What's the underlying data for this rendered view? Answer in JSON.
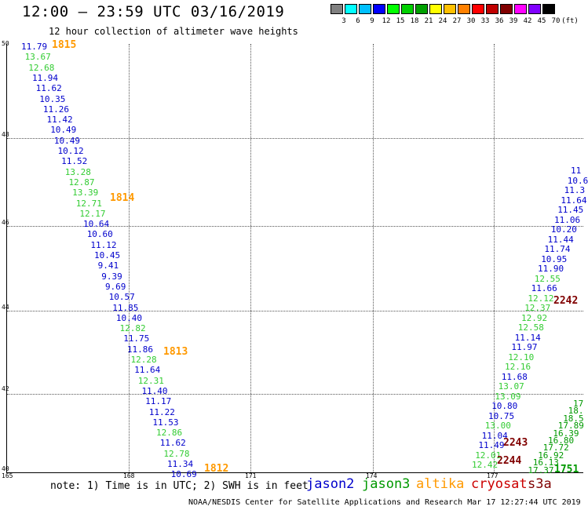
{
  "header": {
    "title": "12:00 — 23:59 UTC 03/16/2019",
    "subtitle": "12 hour collection of altimeter wave heights"
  },
  "colorbar": {
    "colors": [
      "#808080",
      "#00ffff",
      "#00c0ff",
      "#0000ff",
      "#00ff00",
      "#00d000",
      "#00a000",
      "#ffff00",
      "#ffc000",
      "#ff8000",
      "#ff0000",
      "#c00000",
      "#800000",
      "#ff00ff",
      "#8000ff",
      "#000000"
    ],
    "labels": [
      "3",
      "6",
      "9",
      "12",
      "15",
      "18",
      "21",
      "24",
      "27",
      "30",
      "33",
      "36",
      "39",
      "42",
      "45",
      "70",
      "(ft)"
    ]
  },
  "colors": {
    "jason2": "#0000cc",
    "jason3": "#33cc33",
    "jason3_dark": "#009900",
    "altika": "#ff9900",
    "cryosat": "#cc0000",
    "s3a": "#800000"
  },
  "axes": {
    "y_ticks": [
      "50",
      "48",
      "46",
      "44",
      "42",
      "40"
    ],
    "x_ticks": [
      "165",
      "168",
      "171",
      "174",
      "177"
    ]
  },
  "passes": [
    {
      "label": "1815",
      "satellite": "altika"
    },
    {
      "label": "1814",
      "satellite": "altika"
    },
    {
      "label": "1813",
      "satellite": "altika"
    },
    {
      "label": "1812",
      "satellite": "altika"
    },
    {
      "label": "2242",
      "satellite": "s3a"
    },
    {
      "label": "2243",
      "satellite": "s3a"
    },
    {
      "label": "2244",
      "satellite": "s3a"
    },
    {
      "label": "1751",
      "satellite": "jason3"
    }
  ],
  "track_west": [
    {
      "v": "11.79",
      "c": "jason2"
    },
    {
      "v": "13.67",
      "c": "jason3"
    },
    {
      "v": "12.68",
      "c": "jason3"
    },
    {
      "v": "11.94",
      "c": "jason2"
    },
    {
      "v": "11.62",
      "c": "jason2"
    },
    {
      "v": "10.35",
      "c": "jason2"
    },
    {
      "v": "11.26",
      "c": "jason2"
    },
    {
      "v": "11.42",
      "c": "jason2"
    },
    {
      "v": "10.49",
      "c": "jason2"
    },
    {
      "v": "10.49",
      "c": "jason2"
    },
    {
      "v": "10.12",
      "c": "jason2"
    },
    {
      "v": "11.52",
      "c": "jason2"
    },
    {
      "v": "13.28",
      "c": "jason3"
    },
    {
      "v": "12.87",
      "c": "jason3"
    },
    {
      "v": "13.39",
      "c": "jason3"
    },
    {
      "v": "12.71",
      "c": "jason3"
    },
    {
      "v": "12.17",
      "c": "jason3"
    },
    {
      "v": "10.64",
      "c": "jason2"
    },
    {
      "v": "10.60",
      "c": "jason2"
    },
    {
      "v": "11.12",
      "c": "jason2"
    },
    {
      "v": "10.45",
      "c": "jason2"
    },
    {
      "v": "9.41",
      "c": "jason2"
    },
    {
      "v": "9.39",
      "c": "jason2"
    },
    {
      "v": "9.69",
      "c": "jason2"
    },
    {
      "v": "10.57",
      "c": "jason2"
    },
    {
      "v": "11.85",
      "c": "jason2"
    },
    {
      "v": "10.40",
      "c": "jason2"
    },
    {
      "v": "12.82",
      "c": "jason3"
    },
    {
      "v": "11.75",
      "c": "jason2"
    },
    {
      "v": "11.86",
      "c": "jason2"
    },
    {
      "v": "12.28",
      "c": "jason3"
    },
    {
      "v": "11.64",
      "c": "jason2"
    },
    {
      "v": "12.31",
      "c": "jason3"
    },
    {
      "v": "11.40",
      "c": "jason2"
    },
    {
      "v": "11.17",
      "c": "jason2"
    },
    {
      "v": "11.22",
      "c": "jason2"
    },
    {
      "v": "11.53",
      "c": "jason2"
    },
    {
      "v": "12.86",
      "c": "jason3"
    },
    {
      "v": "11.62",
      "c": "jason2"
    },
    {
      "v": "12.78",
      "c": "jason3"
    },
    {
      "v": "11.34",
      "c": "jason2"
    },
    {
      "v": "10.69",
      "c": "jason2"
    }
  ],
  "track_east": [
    {
      "v": "11",
      "c": "jason2"
    },
    {
      "v": "10.6",
      "c": "jason2"
    },
    {
      "v": "11.3",
      "c": "jason2"
    },
    {
      "v": "11.64",
      "c": "jason2"
    },
    {
      "v": "11.45",
      "c": "jason2"
    },
    {
      "v": "11.06",
      "c": "jason2"
    },
    {
      "v": "10.20",
      "c": "jason2"
    },
    {
      "v": "11.44",
      "c": "jason2"
    },
    {
      "v": "11.74",
      "c": "jason2"
    },
    {
      "v": "10.95",
      "c": "jason2"
    },
    {
      "v": "11.90",
      "c": "jason2"
    },
    {
      "v": "12.55",
      "c": "jason3"
    },
    {
      "v": "11.66",
      "c": "jason2"
    },
    {
      "v": "12.12",
      "c": "jason3"
    },
    {
      "v": "12.37",
      "c": "jason3"
    },
    {
      "v": "12.92",
      "c": "jason3"
    },
    {
      "v": "12.58",
      "c": "jason3"
    },
    {
      "v": "11.14",
      "c": "jason2"
    },
    {
      "v": "11.97",
      "c": "jason2"
    },
    {
      "v": "12.10",
      "c": "jason3"
    },
    {
      "v": "12.16",
      "c": "jason3"
    },
    {
      "v": "11.68",
      "c": "jason2"
    },
    {
      "v": "13.07",
      "c": "jason3"
    },
    {
      "v": "13.09",
      "c": "jason3"
    },
    {
      "v": "10.80",
      "c": "jason2"
    },
    {
      "v": "10.75",
      "c": "jason2"
    },
    {
      "v": "13.00",
      "c": "jason3"
    },
    {
      "v": "11.04",
      "c": "jason2"
    },
    {
      "v": "11.49",
      "c": "jason2"
    },
    {
      "v": "12.01",
      "c": "jason3"
    },
    {
      "v": "12.42",
      "c": "jason3"
    }
  ],
  "track_far_east": [
    {
      "v": "17",
      "c": "jason3_dark"
    },
    {
      "v": "18.",
      "c": "jason3_dark"
    },
    {
      "v": "18.5",
      "c": "jason3_dark"
    },
    {
      "v": "17.89",
      "c": "jason3_dark"
    },
    {
      "v": "16.39",
      "c": "jason3_dark"
    },
    {
      "v": "16.80",
      "c": "jason3_dark"
    },
    {
      "v": "17.72",
      "c": "jason3_dark"
    },
    {
      "v": "16.92",
      "c": "jason3_dark"
    },
    {
      "v": "16.13",
      "c": "jason3_dark"
    },
    {
      "v": "17.37",
      "c": "jason3_dark"
    }
  ],
  "note": "note: 1) Time is in UTC; 2) SWH is in feet",
  "legend": [
    "jason2",
    "jason3",
    "altika",
    "cryosat",
    "s3a"
  ],
  "footer": "NOAA/NESDIS Center for Satellite Applications and Research   Mar 17 12:27:44 UTC 2019"
}
